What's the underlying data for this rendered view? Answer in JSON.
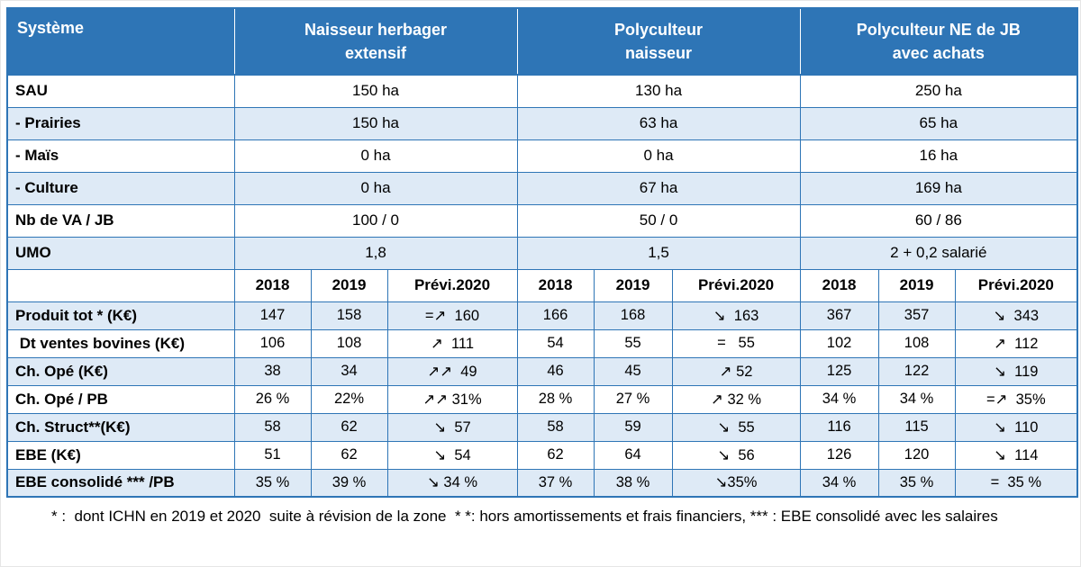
{
  "accent_color": "#2e75b6",
  "band_color": "#deeaf6",
  "table": {
    "corner_label": "Système",
    "groups": [
      {
        "label": "Naisseur herbager extensif",
        "line1": "Naisseur herbager",
        "line2": "extensif"
      },
      {
        "label": "Polyculteur naisseur",
        "line1": "Polyculteur",
        "line2": "naisseur"
      },
      {
        "label": "Polyculteur NE de JB avec achats",
        "line1": "Polyculteur  NE de JB",
        "line2": "avec achats"
      }
    ],
    "info_rows": [
      {
        "label": "SAU",
        "values": [
          "150 ha",
          "130 ha",
          "250 ha"
        ]
      },
      {
        "label": "- Prairies",
        "values": [
          "150 ha",
          "63 ha",
          "65 ha"
        ]
      },
      {
        "label": "- Maïs",
        "values": [
          "0 ha",
          "0 ha",
          "16 ha"
        ]
      },
      {
        "label": "- Culture",
        "values": [
          "0 ha",
          "67 ha",
          "169 ha"
        ]
      },
      {
        "label": "Nb de VA / JB",
        "values": [
          "100 / 0",
          "50 / 0",
          "60 / 86"
        ]
      },
      {
        "label": "UMO",
        "values": [
          "1,8",
          "1,5",
          "2 + 0,2 salarié"
        ]
      }
    ],
    "year_headers": [
      "2018",
      "2019",
      "Prévi.2020"
    ],
    "data_rows": [
      {
        "label": "Produit tot * (K€)",
        "values": [
          "147",
          "158",
          "=↗  160",
          "166",
          "168",
          "↘  163",
          "367",
          "357",
          "↘  343"
        ]
      },
      {
        "label": " Dt ventes bovines (K€)",
        "values": [
          "106",
          "108",
          "↗  111",
          "54",
          "55",
          "=   55",
          "102",
          "108",
          "↗  112"
        ]
      },
      {
        "label": "Ch. Opé (K€)",
        "values": [
          "38",
          "34",
          "↗↗  49",
          "46",
          "45",
          "↗ 52",
          "125",
          "122",
          "↘  119"
        ]
      },
      {
        "label": "Ch. Opé / PB",
        "values": [
          "26 %",
          "22%",
          "↗↗ 31%",
          "28 %",
          "27 %",
          "↗ 32 %",
          "34 %",
          "34 %",
          "=↗  35%"
        ]
      },
      {
        "label": "Ch. Struct**(K€)",
        "values": [
          "58",
          "62",
          "↘  57",
          "58",
          "59",
          "↘  55",
          "116",
          "115",
          "↘  110"
        ]
      },
      {
        "label": "EBE (K€)",
        "values": [
          "51",
          "62",
          "↘  54",
          "62",
          "64",
          "↘  56",
          "126",
          "120",
          "↘  114"
        ]
      },
      {
        "label": "EBE consolidé *** /PB",
        "values": [
          "35 %",
          "39 %",
          "↘ 34 %",
          "37 %",
          "38 %",
          "↘35%",
          "34 %",
          "35 %",
          "=  35 %"
        ]
      }
    ]
  },
  "footnote": "* :  dont ICHN en 2019 et 2020  suite à révision de la zone  * *: hors amortissements et frais financiers, *** : EBE consolidé avec les salaires"
}
